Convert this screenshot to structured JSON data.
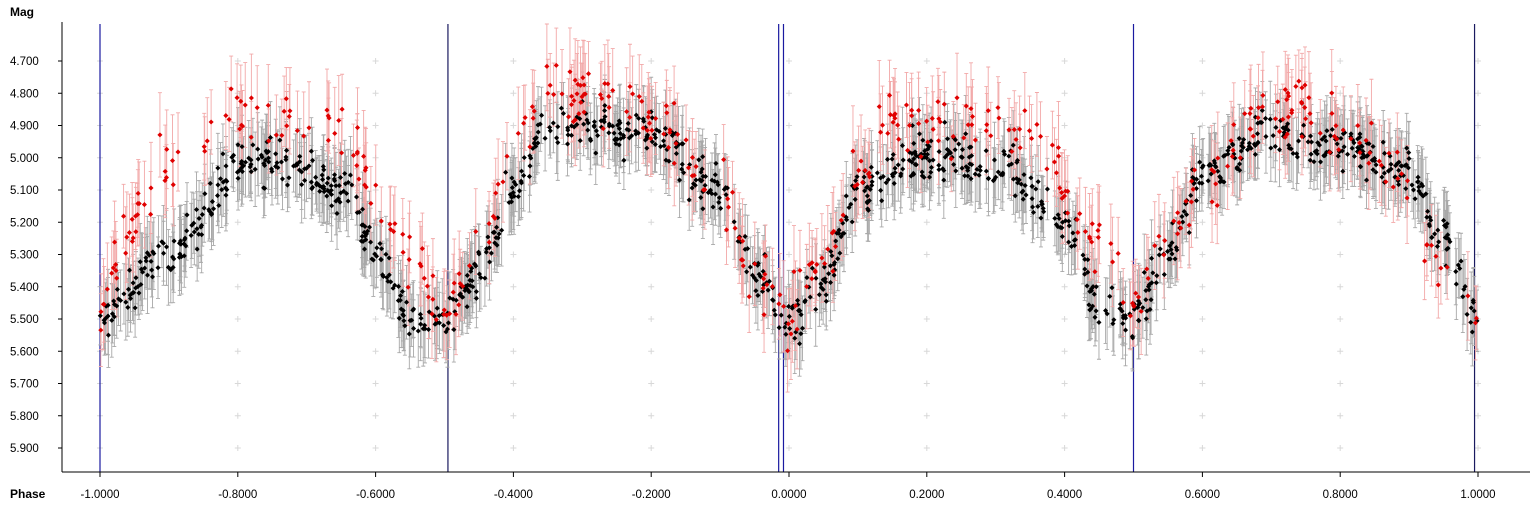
{
  "chart_data": {
    "type": "scatter",
    "title": "",
    "ylabel": "Mag",
    "xlabel": "Phase",
    "xlim": [
      -1.0,
      1.0
    ],
    "ylim": [
      5.9,
      4.7
    ],
    "y_inverted": true,
    "grid": "light cross markers",
    "x_ticks": [
      "-1.0000",
      "-0.8000",
      "-0.6000",
      "-0.4000",
      "-0.2000",
      "0.0000",
      "0.2000",
      "0.4000",
      "0.6000",
      "0.8000",
      "1.0000"
    ],
    "y_ticks": [
      "4.700",
      "4.800",
      "4.900",
      "5.000",
      "5.100",
      "5.200",
      "5.300",
      "5.400",
      "5.500",
      "5.600",
      "5.700",
      "5.800",
      "5.900"
    ],
    "vertical_lines": [
      {
        "x": -1.0,
        "color": "#1a1aa0"
      },
      {
        "x": -0.495,
        "color": "#1a1a60"
      },
      {
        "x": -0.015,
        "color": "#1a1aa0"
      },
      {
        "x": -0.008,
        "color": "#1a1aa0"
      },
      {
        "x": 0.5,
        "color": "#1a1aa0"
      },
      {
        "x": 0.995,
        "color": "#1a1a60"
      }
    ],
    "series": [
      {
        "color": "#000000",
        "error_color": "#a8a8a8",
        "curve": [
          [
            -1.0,
            5.5
          ],
          [
            -0.9,
            5.3
          ],
          [
            -0.8,
            5.03
          ],
          [
            -0.72,
            5.02
          ],
          [
            -0.65,
            5.1
          ],
          [
            -0.6,
            5.28
          ],
          [
            -0.55,
            5.5
          ],
          [
            -0.5,
            5.5
          ],
          [
            -0.45,
            5.35
          ],
          [
            -0.4,
            5.1
          ],
          [
            -0.35,
            4.9
          ],
          [
            -0.3,
            4.9
          ],
          [
            -0.2,
            4.93
          ],
          [
            -0.1,
            5.1
          ],
          [
            -0.05,
            5.35
          ],
          [
            0.0,
            5.5
          ],
          [
            0.05,
            5.4
          ],
          [
            0.1,
            5.1
          ],
          [
            0.2,
            5.0
          ],
          [
            0.3,
            5.02
          ],
          [
            0.4,
            5.2
          ],
          [
            0.45,
            5.45
          ],
          [
            0.5,
            5.5
          ],
          [
            0.55,
            5.3
          ],
          [
            0.6,
            5.05
          ],
          [
            0.7,
            4.92
          ],
          [
            0.8,
            4.97
          ],
          [
            0.9,
            5.05
          ],
          [
            0.95,
            5.25
          ],
          [
            1.0,
            5.5
          ]
        ],
        "scatter": 0.06,
        "error": 0.1,
        "n": 1150
      },
      {
        "color": "#e00000",
        "error_color": "#f2a8a8",
        "curve": [
          [
            -1.0,
            5.45
          ],
          [
            -0.95,
            5.2
          ],
          [
            -0.9,
            5.0
          ],
          [
            -0.82,
            4.85
          ],
          [
            -0.72,
            4.88
          ],
          [
            -0.65,
            4.92
          ],
          [
            -0.6,
            5.1
          ],
          [
            -0.55,
            5.3
          ],
          [
            -0.5,
            5.45
          ],
          [
            -0.45,
            5.25
          ],
          [
            -0.4,
            5.0
          ],
          [
            -0.35,
            4.82
          ],
          [
            -0.26,
            4.82
          ],
          [
            -0.2,
            4.88
          ],
          [
            -0.1,
            5.1
          ],
          [
            -0.05,
            5.35
          ],
          [
            0.0,
            5.5
          ],
          [
            0.05,
            5.3
          ],
          [
            0.1,
            5.05
          ],
          [
            0.15,
            4.88
          ],
          [
            0.25,
            4.9
          ],
          [
            0.35,
            4.95
          ],
          [
            0.45,
            5.25
          ],
          [
            0.5,
            5.5
          ],
          [
            0.55,
            5.25
          ],
          [
            0.6,
            5.05
          ],
          [
            0.7,
            4.85
          ],
          [
            0.75,
            4.85
          ],
          [
            0.8,
            4.9
          ],
          [
            0.88,
            5.05
          ],
          [
            0.95,
            5.35
          ],
          [
            1.0,
            5.5
          ]
        ],
        "scatter": 0.08,
        "error": 0.12,
        "n": 450
      }
    ]
  }
}
